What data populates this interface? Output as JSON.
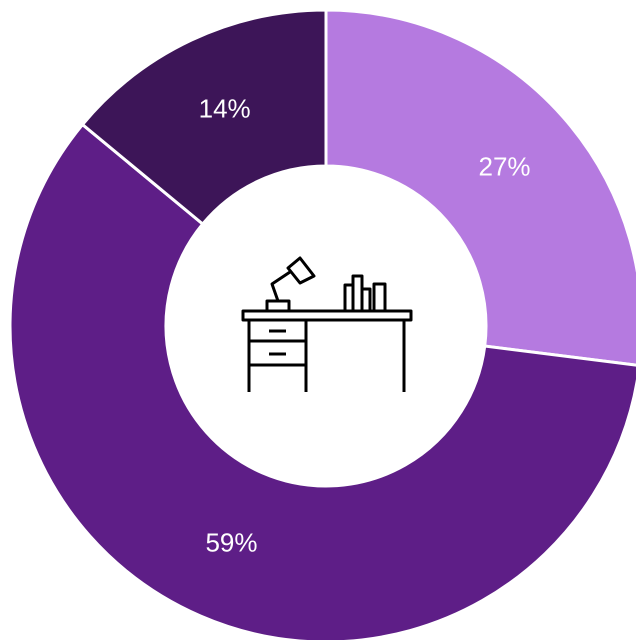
{
  "chart_data": {
    "type": "donut",
    "categories": [
      null,
      null,
      null
    ],
    "values": [
      27,
      59,
      14
    ],
    "value_labels": [
      "27%",
      "59%",
      "14%"
    ],
    "colors": [
      "#b57ae0",
      "#5e1e87",
      "#3d1558"
    ]
  }
}
